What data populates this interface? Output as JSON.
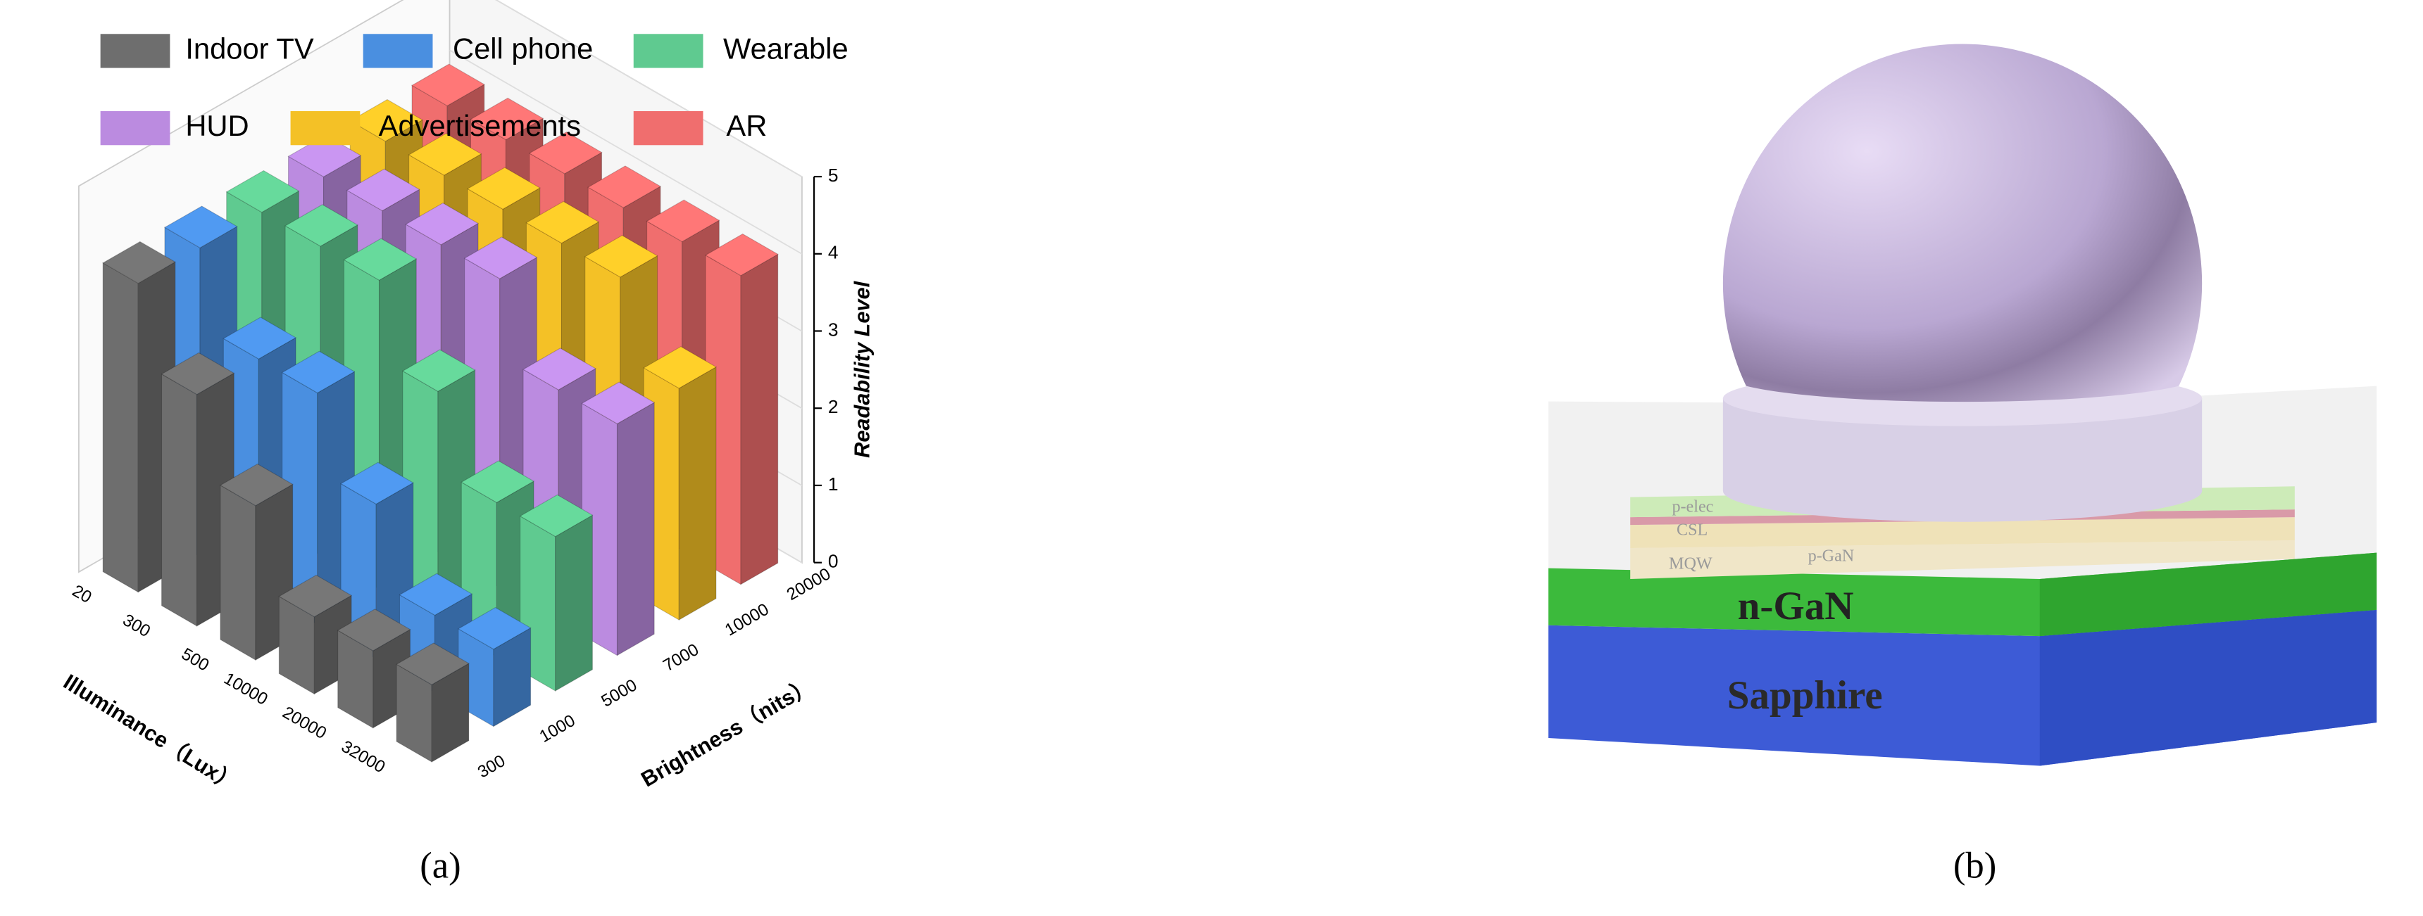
{
  "chart_data": {
    "type": "bar3d",
    "categories": [
      "20",
      "300",
      "500",
      "10000",
      "20000",
      "32000"
    ],
    "depth_categories": [
      "300",
      "1000",
      "5000",
      "7000",
      "10000",
      "20000"
    ],
    "xlabel": "Illuminance（Lux）",
    "depth_label": "Brightness（nits）",
    "zlabel": "Readability Level",
    "zlim": [
      0,
      5
    ],
    "zticks": [
      0,
      1,
      2,
      3,
      4,
      5
    ],
    "series": [
      {
        "name": "Indoor TV",
        "color": "#6e6e6e",
        "values": [
          4,
          3,
          2,
          1,
          1,
          1
        ]
      },
      {
        "name": "Cell phone",
        "color": "#4a8fe0",
        "values": [
          4,
          3,
          3,
          2,
          1,
          1
        ]
      },
      {
        "name": "Wearable",
        "color": "#5fca90",
        "values": [
          4,
          4,
          4,
          3,
          2,
          2
        ]
      },
      {
        "name": "HUD",
        "color": "#bb8be0",
        "values": [
          4,
          4,
          4,
          4,
          3,
          3
        ]
      },
      {
        "name": "Advertisements",
        "color": "#f4c126",
        "values": [
          4,
          4,
          4,
          4,
          4,
          3
        ]
      },
      {
        "name": "AR",
        "color": "#f06e6e",
        "values": [
          4,
          4,
          4,
          4,
          4,
          4
        ]
      }
    ],
    "caption": "(a)"
  },
  "diagram": {
    "labels": [
      "p-elec",
      "CSL",
      "MQW",
      "p-GaN",
      "n-GaN",
      "Sapphire"
    ],
    "caption": "(b)"
  }
}
